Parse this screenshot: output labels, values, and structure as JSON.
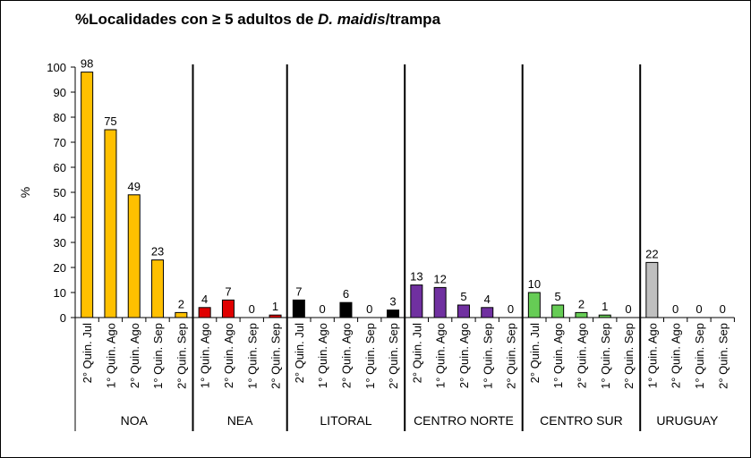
{
  "chart_data": {
    "type": "bar",
    "title_prefix": "%Localidades con ≥ 5 adultos de ",
    "title_species": "D. maidis",
    "title_suffix": "/trampa",
    "ylabel": "%",
    "ylim": [
      0,
      100
    ],
    "yticks": [
      0,
      10,
      20,
      30,
      40,
      50,
      60,
      70,
      80,
      90,
      100
    ],
    "groups": [
      {
        "name": "NOA",
        "color": "#FFC000",
        "categories": [
          "2° Quin. Jul",
          "1° Quin. Ago",
          "2° Quin. Ago",
          "1° Quin. Sep",
          "2° Quin. Sep"
        ],
        "values": [
          98,
          75,
          49,
          23,
          2
        ]
      },
      {
        "name": "NEA",
        "color": "#E00000",
        "categories": [
          "1° Quin. Ago",
          "2° Quin. Ago",
          "1° Quin. Sep",
          "2° Quin. Sep"
        ],
        "values": [
          4,
          7,
          0,
          1
        ]
      },
      {
        "name": "LITORAL",
        "color": "#000000",
        "categories": [
          "2° Quin. Jul",
          "1° Quin. Ago",
          "2° Quin. Ago",
          "1° Quin. Sep",
          "2° Quin. Sep"
        ],
        "values": [
          7,
          0,
          6,
          0,
          3
        ]
      },
      {
        "name": "CENTRO NORTE",
        "color": "#7030A0",
        "categories": [
          "2° Quin. Jul",
          "1° Quin. Ago",
          "2° Quin. Ago",
          "1° Quin. Sep",
          "2° Quin. Sep"
        ],
        "values": [
          13,
          12,
          5,
          4,
          0
        ]
      },
      {
        "name": "CENTRO SUR",
        "color": "#66CC55",
        "categories": [
          "2° Quin. Jul",
          "1° Quin. Ago",
          "2° Quin. Ago",
          "1° Quin. Sep",
          "2° Quin. Sep"
        ],
        "values": [
          10,
          5,
          2,
          1,
          0
        ]
      },
      {
        "name": "URUGUAY",
        "color": "#BFBFBF",
        "categories": [
          "1° Quin. Ago",
          "2° Quin. Ago",
          "1° Quin. Sep",
          "2° Quin. Sep"
        ],
        "values": [
          22,
          0,
          0,
          0
        ]
      }
    ]
  }
}
